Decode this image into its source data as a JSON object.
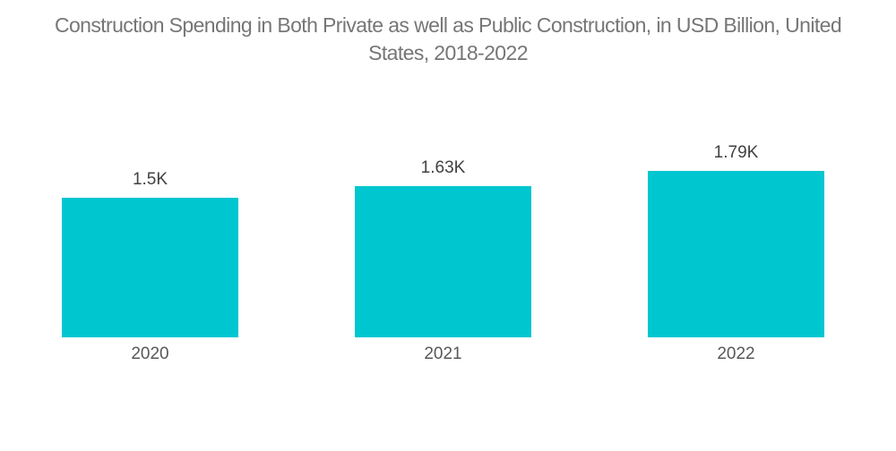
{
  "title": {
    "line1": "Construction Spending in Both Private as well as Public Construction, in USD Billion, United",
    "line2": "States, 2018-2022"
  },
  "colors": {
    "bar": "#00C6D0",
    "title_text": "#767676",
    "value_label_text": "#414141",
    "year_label_text": "#585858",
    "background": "#FFFFFF"
  },
  "chart_data": {
    "type": "bar",
    "title": "Construction Spending in Both Private as well as Public Construction, in USD Billion, United States, 2018-2022",
    "categories": [
      "2020",
      "2021",
      "2022"
    ],
    "values": [
      1500,
      1630,
      1790
    ],
    "value_labels": [
      "1.5K",
      "1.63K",
      "1.79K"
    ],
    "xlabel": "",
    "ylabel": "",
    "ylim": [
      0,
      1900
    ],
    "grid": false,
    "legend": false,
    "axis_lines": false,
    "bar_color": "#00C6D0"
  }
}
